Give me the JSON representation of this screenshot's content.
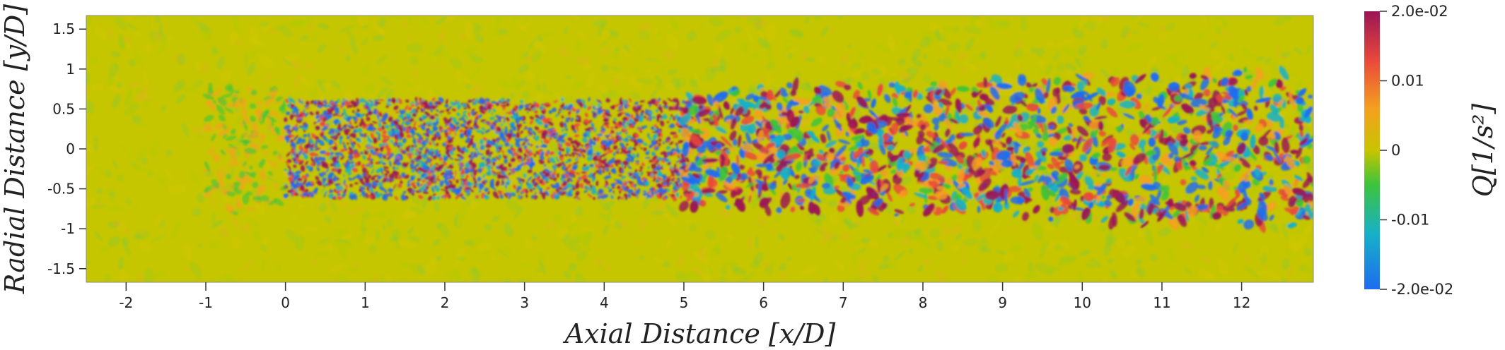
{
  "figure": {
    "xlabel": "Axial Distance [x/D]",
    "ylabel": "Radial Distance [y/D]",
    "x_ticks": [
      "-2",
      "-1",
      "0",
      "1",
      "2",
      "3",
      "4",
      "5",
      "6",
      "7",
      "8",
      "9",
      "10",
      "11",
      "12"
    ],
    "y_ticks": [
      "1.5",
      "1",
      "0.5",
      "0",
      "-0.5",
      "-1",
      "-1.5"
    ],
    "x_range": [
      -2.5,
      12.9
    ],
    "y_range": [
      -1.67,
      1.67
    ],
    "colorbar": {
      "title": "Q[1/s²]",
      "tick_labels": [
        "2.0e-02",
        "0.01",
        "0",
        "-0.01",
        "-2.0e-02"
      ],
      "range": [
        -0.02,
        0.02
      ],
      "colormap": [
        "#1e6cf0",
        "#17b0c8",
        "#3ec43a",
        "#c8c400",
        "#f5a020",
        "#ea4a3a",
        "#9b1555"
      ]
    },
    "field": {
      "background_color": "#c6c600",
      "near_zero_colors": [
        "#b8c800",
        "#d0c600",
        "#a8c810"
      ]
    }
  }
}
